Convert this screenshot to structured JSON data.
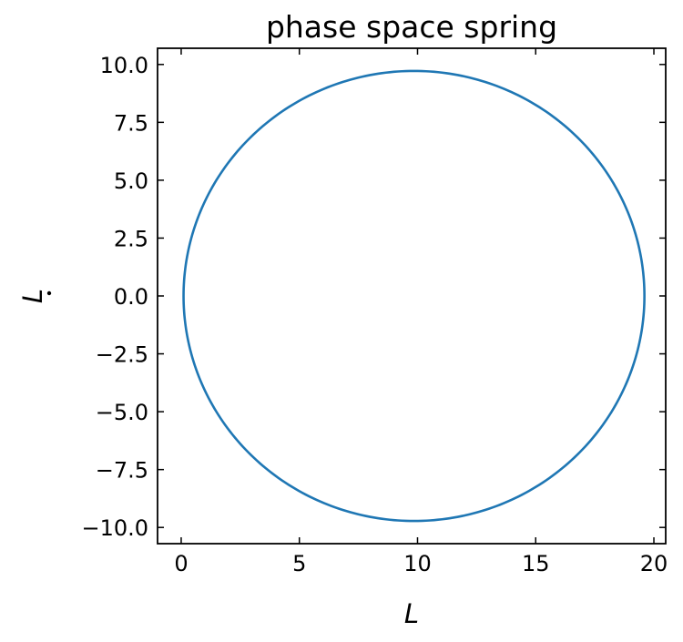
{
  "chart_data": {
    "type": "line",
    "title": "phase space spring",
    "xlabel": "L",
    "ylabel": "L",
    "ylabel_dot": true,
    "xlim": [
      -1.0,
      20.5
    ],
    "ylim": [
      -10.7,
      10.7
    ],
    "xticks": [
      0,
      5,
      10,
      15,
      20
    ],
    "xtick_labels": [
      "0",
      "5",
      "10",
      "15",
      "20"
    ],
    "yticks": [
      10.0,
      7.5,
      5.0,
      2.5,
      0.0,
      -2.5,
      -5.0,
      -7.5,
      -10.0
    ],
    "ytick_labels": [
      "10.0",
      "7.5",
      "5.0",
      "2.5",
      "0.0",
      "−2.5",
      "−5.0",
      "−7.5",
      "−10.0"
    ],
    "grid": false,
    "tick_direction": "in",
    "ticks_on_all_sides": true,
    "series": [
      {
        "color": "#1f77b4",
        "shape": "ellipse",
        "center": [
          9.85,
          0.0
        ],
        "semi_axis_x": 9.75,
        "semi_axis_y": 9.72,
        "x_range": [
          0.1,
          19.6
        ],
        "y_range": [
          -9.72,
          9.72
        ]
      }
    ]
  }
}
